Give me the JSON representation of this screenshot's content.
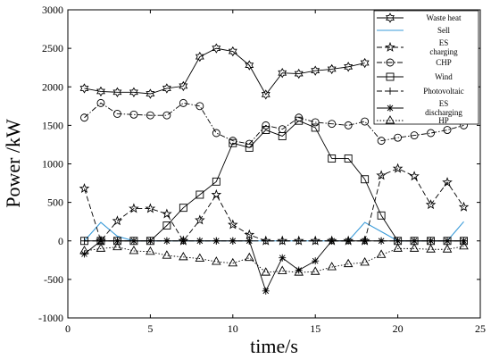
{
  "chart_data": {
    "type": "line",
    "xlabel": "time/s",
    "ylabel": "Power /kW",
    "xlim": [
      0,
      25
    ],
    "ylim": [
      -1000,
      3000
    ],
    "xticks": [
      0,
      5,
      10,
      15,
      20,
      25
    ],
    "yticks": [
      -1000,
      -500,
      0,
      500,
      1000,
      1500,
      2000,
      2500,
      3000
    ],
    "grid": false,
    "legend_position": "top-right",
    "x": [
      1,
      2,
      3,
      4,
      5,
      6,
      7,
      8,
      9,
      10,
      11,
      12,
      13,
      14,
      15,
      16,
      17,
      18,
      19,
      20,
      21,
      22,
      23,
      24
    ],
    "series": [
      {
        "name": "Waste heat",
        "style": "solid",
        "marker": "hexagram",
        "color": "#000000",
        "values": [
          1980,
          1940,
          1930,
          1930,
          1910,
          1980,
          2010,
          2390,
          2500,
          2460,
          2280,
          1900,
          2180,
          2170,
          2210,
          2230,
          2260,
          2310,
          null,
          null,
          null,
          null,
          null,
          null
        ]
      },
      {
        "name": "Sell",
        "style": "solid",
        "marker": "none",
        "color": "#3a9bd9",
        "values": [
          0,
          240,
          60,
          0,
          0,
          0,
          0,
          0,
          0,
          0,
          0,
          0,
          0,
          0,
          0,
          0,
          0,
          240,
          120,
          0,
          0,
          0,
          0,
          250
        ]
      },
      {
        "name": "ES\ncharging",
        "style": "dashed",
        "marker": "star",
        "color": "#000000",
        "values": [
          680,
          0,
          260,
          420,
          420,
          350,
          0,
          270,
          600,
          210,
          80,
          0,
          0,
          0,
          0,
          0,
          0,
          0,
          850,
          940,
          840,
          470,
          760,
          440
        ]
      },
      {
        "name": "CHP",
        "style": "dashdot",
        "marker": "circle",
        "color": "#000000",
        "values": [
          1600,
          1790,
          1650,
          1640,
          1630,
          1630,
          1790,
          1750,
          1400,
          1300,
          1260,
          1500,
          1450,
          1600,
          1540,
          1520,
          1500,
          1550,
          1300,
          1340,
          1370,
          1400,
          1440,
          1500
        ]
      },
      {
        "name": "Wind",
        "style": "solid",
        "marker": "square",
        "color": "#000000",
        "values": [
          0,
          0,
          0,
          0,
          0,
          200,
          430,
          600,
          770,
          1270,
          1210,
          1440,
          1360,
          1560,
          1470,
          1070,
          1070,
          800,
          330,
          0,
          0,
          0,
          0,
          0
        ]
      },
      {
        "name": "Photovoltaic",
        "style": "dashed",
        "marker": "plus",
        "color": "#000000",
        "values": [
          0,
          0,
          0,
          0,
          0,
          0,
          0,
          0,
          0,
          0,
          0,
          0,
          0,
          0,
          0,
          0,
          0,
          0,
          0,
          0,
          0,
          0,
          0,
          0
        ]
      },
      {
        "name": "ES\ndischarging",
        "style": "solid",
        "marker": "asterisk",
        "color": "#000000",
        "values": [
          -170,
          0,
          0,
          0,
          0,
          0,
          0,
          0,
          0,
          0,
          0,
          -650,
          -220,
          -380,
          -260,
          0,
          0,
          0,
          0,
          0,
          0,
          0,
          0,
          0
        ]
      },
      {
        "name": "HP",
        "style": "dotted",
        "marker": "triangle",
        "color": "#000000",
        "values": [
          -130,
          -100,
          -80,
          -130,
          -140,
          -190,
          -210,
          -230,
          -270,
          -290,
          -220,
          -410,
          -390,
          -410,
          -400,
          -340,
          -300,
          -280,
          -180,
          -100,
          -100,
          -110,
          -110,
          -70
        ]
      }
    ]
  }
}
